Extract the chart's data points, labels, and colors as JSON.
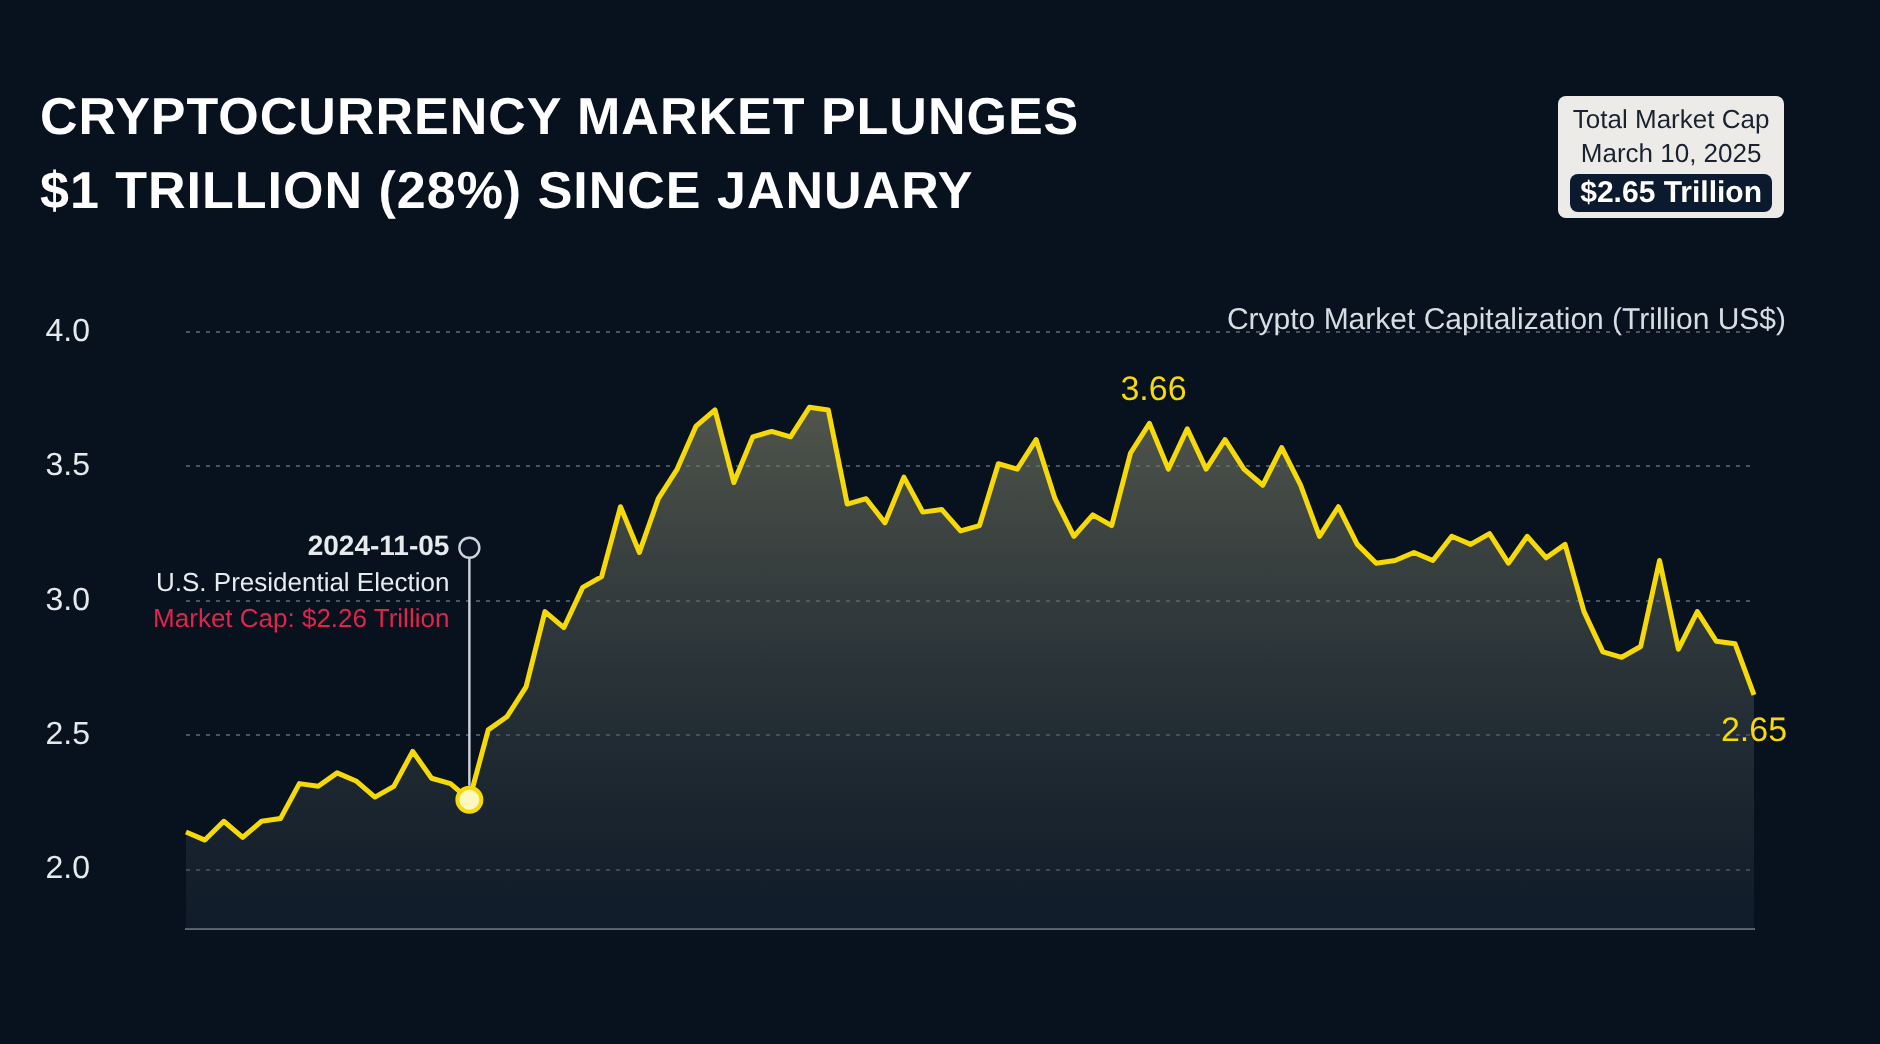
{
  "chart_data": {
    "type": "area",
    "title": "CRYPTOCURRENCY MARKET PLUNGES $1 TRILLION (28%) SINCE JANUARY",
    "annotations": [
      "2024-11-05\nU.S. Presidential Election\nMarket Cap: $2.26 Trillion",
      "Total Market Cap",
      "March 10, 2025",
      "$2.65 Trillion"
    ],
    "categories": [
      null,
      null,
      null,
      null,
      null,
      null,
      null,
      null,
      null,
      null,
      null,
      null,
      null,
      null,
      null,
      null,
      null,
      null,
      null,
      null,
      null,
      null,
      null,
      null,
      null,
      null,
      null,
      null,
      null,
      null,
      null,
      null,
      null,
      null,
      null,
      null,
      null,
      null,
      null,
      null,
      null,
      null,
      null,
      null,
      null,
      null,
      null,
      null,
      null,
      null,
      null,
      null,
      null,
      null,
      null,
      null,
      null,
      null,
      null,
      null,
      null,
      null,
      null,
      null,
      null,
      null,
      null,
      null,
      null,
      null,
      null,
      null,
      null,
      null,
      null,
      null,
      null,
      null,
      null,
      null,
      null,
      null,
      null,
      null
    ],
    "series": [
      {
        "name": "Crypto Market Capitalization (Trillion US$)",
        "color": "#f5d90a",
        "values": [
          2.14,
          2.11,
          2.18,
          2.12,
          2.18,
          2.19,
          2.32,
          2.31,
          2.36,
          2.33,
          2.27,
          2.31,
          2.44,
          2.34,
          2.32,
          2.26,
          2.52,
          2.57,
          2.68,
          2.96,
          2.9,
          3.05,
          3.09,
          3.35,
          3.18,
          3.38,
          3.49,
          3.65,
          3.71,
          3.44,
          3.61,
          3.63,
          3.61,
          3.72,
          3.71,
          3.36,
          3.38,
          3.29,
          3.46,
          3.33,
          3.34,
          3.26,
          3.28,
          3.51,
          3.49,
          3.6,
          3.38,
          3.24,
          3.32,
          3.28,
          3.55,
          3.66,
          3.49,
          3.64,
          3.49,
          3.6,
          3.49,
          3.43,
          3.57,
          3.43,
          3.24,
          3.35,
          3.21,
          3.14,
          3.15,
          3.18,
          3.15,
          3.24,
          3.21,
          3.25,
          3.14,
          3.24,
          3.16,
          3.21,
          2.96,
          2.81,
          2.79,
          2.83,
          3.15,
          2.82,
          2.96,
          2.85,
          2.84,
          2.65
        ],
        "value_labels": [
          null,
          null,
          null,
          null,
          null,
          null,
          null,
          null,
          null,
          null,
          null,
          null,
          null,
          null,
          null,
          null,
          null,
          null,
          null,
          null,
          null,
          null,
          null,
          null,
          null,
          null,
          null,
          null,
          null,
          null,
          null,
          null,
          null,
          null,
          null,
          null,
          null,
          null,
          null,
          null,
          null,
          null,
          null,
          null,
          null,
          null,
          null,
          null,
          null,
          null,
          null,
          "3.66",
          null,
          null,
          null,
          null,
          null,
          null,
          null,
          null,
          null,
          null,
          null,
          null,
          null,
          null,
          null,
          null,
          null,
          null,
          null,
          null,
          null,
          null,
          null,
          null,
          null,
          null,
          null,
          null,
          null,
          null,
          null,
          "2.65"
        ]
      },
      {
        "type": "scatter",
        "marker": "circle",
        "color": "#fff7c0",
        "values": [
          null,
          null,
          null,
          null,
          null,
          null,
          null,
          null,
          null,
          null,
          null,
          null,
          null,
          null,
          null,
          2.26,
          null,
          null,
          null,
          null,
          null,
          null,
          null,
          null,
          null,
          null,
          null,
          null,
          null,
          null,
          null,
          null,
          null,
          null,
          null,
          null,
          null,
          null,
          null,
          null,
          null,
          null,
          null,
          null,
          null,
          null,
          null,
          null,
          null,
          null,
          null,
          null,
          null,
          null,
          null,
          null,
          null,
          null,
          null,
          null,
          null,
          null,
          null,
          null,
          null,
          null,
          null,
          null,
          null,
          null,
          null,
          null,
          null,
          null,
          null,
          null,
          null,
          null,
          null,
          null,
          null,
          null,
          null,
          null
        ]
      }
    ],
    "ylim": [
      1.78,
      4.0
    ],
    "yticks": [
      {
        "value": 2,
        "label": "2.0"
      },
      {
        "value": 2.5,
        "label": "2.5"
      },
      {
        "value": 3,
        "label": "3.0"
      },
      {
        "value": 3.5,
        "label": "3.5"
      },
      {
        "value": 4,
        "label": "4.0"
      }
    ],
    "grid": "y",
    "tick_labels": "y",
    "legend": false,
    "marker": "none",
    "line_style": "solid"
  }
}
